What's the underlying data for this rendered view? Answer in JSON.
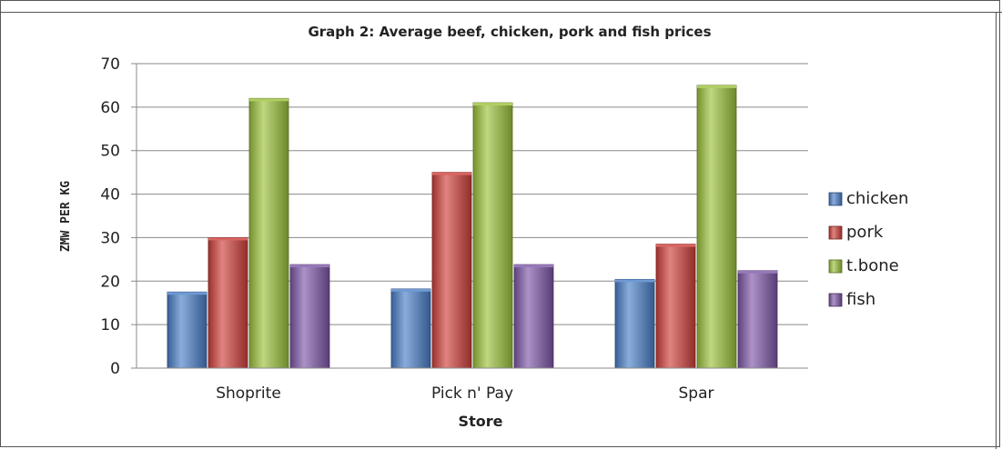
{
  "chart_data": {
    "type": "bar",
    "title": "Graph 2: Average beef, chicken, pork and fish prices",
    "xlabel": "Store",
    "ylabel": "ZMW PER KG",
    "categories": [
      "Shoprite",
      "Pick n' Pay",
      "Spar"
    ],
    "series": [
      {
        "name": "chicken",
        "values": [
          17.5,
          18.2,
          20.4
        ],
        "color": "#4a7fc8"
      },
      {
        "name": "pork",
        "values": [
          30,
          45,
          28.5
        ],
        "color": "#d0403c"
      },
      {
        "name": "t.bone",
        "values": [
          62,
          61,
          65
        ],
        "color": "#9cc23c"
      },
      {
        "name": "fish",
        "values": [
          23.8,
          23.8,
          22.4
        ],
        "color": "#7d57a8"
      }
    ],
    "ylim": [
      0,
      70
    ],
    "yticks": [
      "0",
      "10",
      "20",
      "30",
      "40",
      "50",
      "60",
      "70"
    ],
    "grid": true,
    "legend_position": "right"
  }
}
